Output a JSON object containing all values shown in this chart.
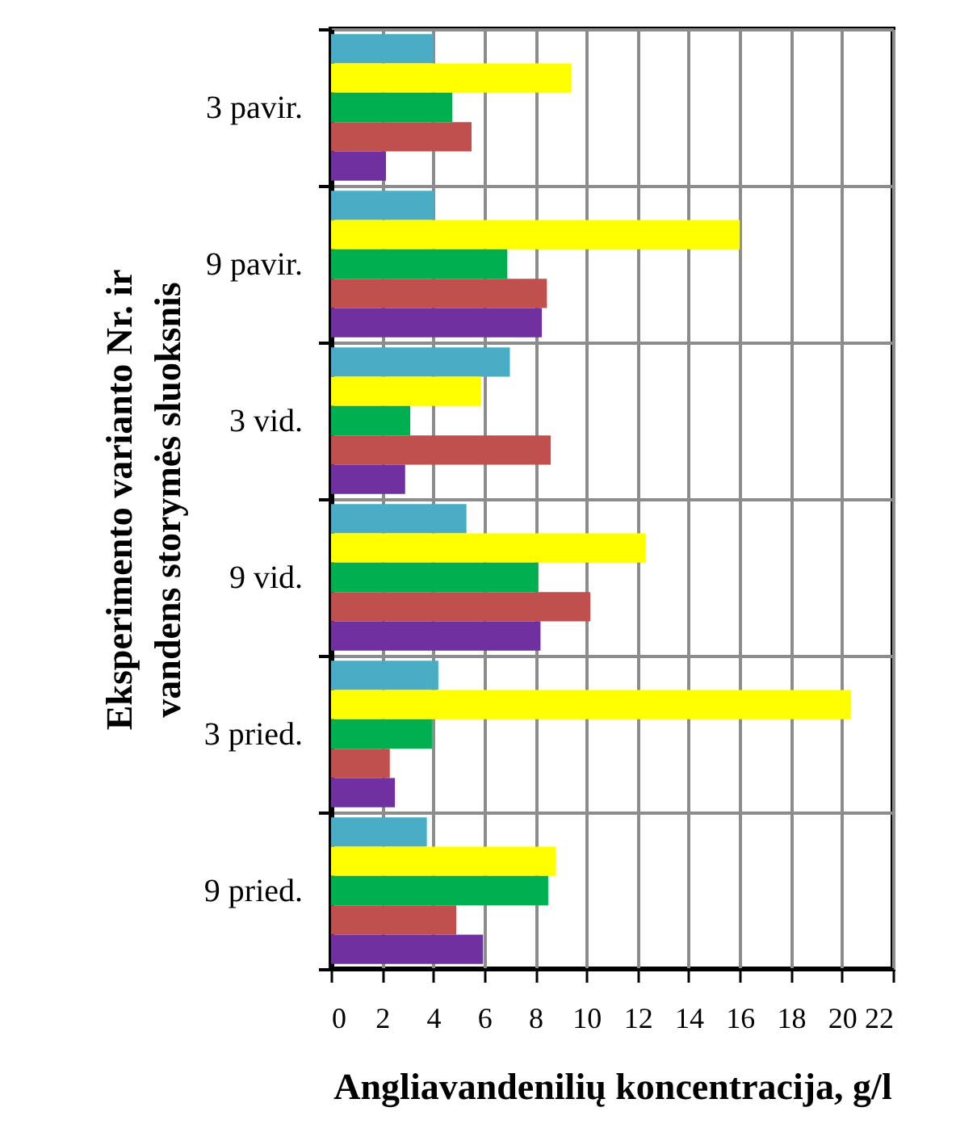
{
  "chart_data": {
    "type": "bar",
    "orientation": "horizontal",
    "xlabel": "Angliavandenilių koncentracija, g/l",
    "ylabel": "Eksperimento varianto Nr. ir vandens storymės sluoksnis",
    "categories": [
      "3 pavir.",
      "9 pavir.",
      "3 vid.",
      "9 vid.",
      "3 pried.",
      "9 pried."
    ],
    "series": [
      {
        "color": "#4bacc6",
        "values": [
          4.0,
          4.05,
          7.0,
          5.3,
          4.2,
          3.75
        ]
      },
      {
        "color": "#ffff00",
        "values": [
          9.4,
          16.0,
          5.85,
          12.3,
          20.35,
          8.8
        ]
      },
      {
        "color": "#00b050",
        "values": [
          4.75,
          6.9,
          3.1,
          8.1,
          3.95,
          8.5
        ]
      },
      {
        "color": "#c0504d",
        "values": [
          5.5,
          8.45,
          8.6,
          10.15,
          2.3,
          4.9
        ]
      },
      {
        "color": "#7030a0",
        "values": [
          2.15,
          8.25,
          2.9,
          8.2,
          2.5,
          5.95
        ]
      }
    ],
    "xlim": [
      0,
      22
    ],
    "xticks": [
      0,
      2,
      4,
      6,
      8,
      10,
      12,
      14,
      16,
      18,
      20,
      22
    ],
    "grid": true
  }
}
